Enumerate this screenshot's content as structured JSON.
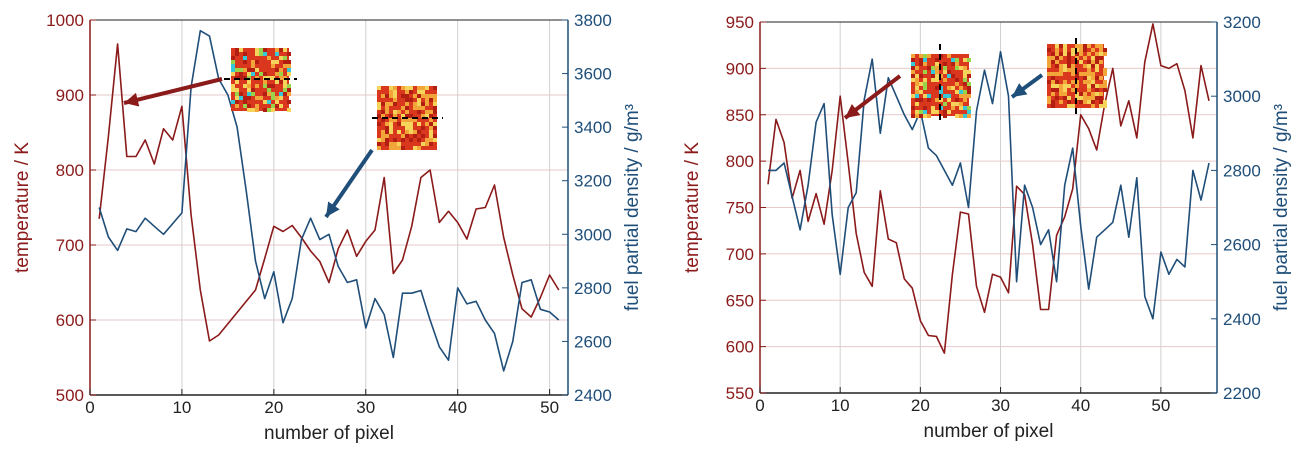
{
  "colors": {
    "temperature": "#8B1A1A",
    "fuel": "#1F4E79",
    "grid": "#d0d0d0",
    "axis": "#222222"
  },
  "chart_data": [
    {
      "type": "line",
      "xlabel": "number of pixel",
      "ylabel_left": "temperature / K",
      "ylabel_right": "fuel partial density / g/m³",
      "xlim": [
        0,
        52
      ],
      "ylim_left": [
        500,
        1000
      ],
      "ylim_right": [
        2400,
        3800
      ],
      "x_ticks": [
        0,
        10,
        20,
        30,
        40,
        50
      ],
      "y_ticks_left": [
        500,
        600,
        700,
        800,
        900,
        1000
      ],
      "y_ticks_right": [
        2400,
        2600,
        2800,
        3000,
        3200,
        3400,
        3600,
        3800
      ],
      "grid": true,
      "x": [
        1,
        2,
        3,
        4,
        5,
        6,
        7,
        8,
        9,
        10,
        11,
        12,
        13,
        14,
        15,
        16,
        17,
        18,
        19,
        20,
        21,
        22,
        23,
        24,
        25,
        26,
        27,
        28,
        29,
        30,
        31,
        32,
        33,
        34,
        35,
        36,
        37,
        38,
        39,
        40,
        41,
        42,
        43,
        44,
        45,
        46,
        47,
        48,
        49,
        50,
        51
      ],
      "series": [
        {
          "axis": "left",
          "values": [
            735,
            845,
            968,
            818,
            818,
            840,
            808,
            855,
            840,
            885,
            740,
            640,
            572,
            580,
            595,
            610,
            625,
            640,
            682,
            725,
            718,
            726,
            710,
            692,
            678,
            650,
            695,
            720,
            685,
            705,
            720,
            790,
            662,
            680,
            725,
            790,
            800,
            730,
            745,
            730,
            708,
            748,
            750,
            780,
            710,
            660,
            615,
            604,
            630,
            660,
            640
          ]
        },
        {
          "axis": "right",
          "values": [
            3100,
            2990,
            2940,
            3020,
            3010,
            3060,
            3030,
            3000,
            3040,
            3080,
            3550,
            3760,
            3740,
            3580,
            3520,
            3400,
            3160,
            2900,
            2760,
            2860,
            2670,
            2760,
            2980,
            3060,
            2980,
            3000,
            2880,
            2820,
            2830,
            2650,
            2760,
            2700,
            2540,
            2780,
            2780,
            2790,
            2680,
            2580,
            2530,
            2800,
            2740,
            2750,
            2680,
            2630,
            2490,
            2600,
            2820,
            2830,
            2720,
            2710,
            2680
          ]
        }
      ],
      "annotations": [
        {
          "type": "arrow",
          "color": "temperature"
        },
        {
          "type": "arrow",
          "color": "fuel"
        }
      ]
    },
    {
      "type": "line",
      "xlabel": "number of pixel",
      "ylabel_left": "temperature / K",
      "ylabel_right": "fuel partial density / g/m³",
      "xlim": [
        0,
        57
      ],
      "ylim_left": [
        550,
        950
      ],
      "ylim_right": [
        2200,
        3200
      ],
      "x_ticks": [
        0,
        10,
        20,
        30,
        40,
        50
      ],
      "y_ticks_left": [
        550,
        600,
        650,
        700,
        750,
        800,
        850,
        900,
        950
      ],
      "y_ticks_right": [
        2200,
        2400,
        2600,
        2800,
        3000,
        3200
      ],
      "grid": true,
      "x": [
        1,
        2,
        3,
        4,
        5,
        6,
        7,
        8,
        9,
        10,
        11,
        12,
        13,
        14,
        15,
        16,
        17,
        18,
        19,
        20,
        21,
        22,
        23,
        24,
        25,
        26,
        27,
        28,
        29,
        30,
        31,
        32,
        33,
        34,
        35,
        36,
        37,
        38,
        39,
        40,
        41,
        42,
        43,
        44,
        45,
        46,
        47,
        48,
        49,
        50,
        51,
        52,
        53,
        54,
        55,
        56
      ],
      "series": [
        {
          "axis": "left",
          "values": [
            775,
            845,
            820,
            760,
            790,
            735,
            765,
            732,
            790,
            870,
            798,
            722,
            680,
            665,
            768,
            716,
            712,
            673,
            663,
            628,
            612,
            611,
            593,
            678,
            745,
            743,
            665,
            637,
            678,
            675,
            658,
            773,
            764,
            710,
            640,
            640,
            720,
            740,
            770,
            850,
            835,
            812,
            862,
            900,
            838,
            865,
            825,
            907,
            948,
            903,
            900,
            905,
            876,
            825,
            903,
            865
          ]
        },
        {
          "axis": "right",
          "values": [
            2800,
            2800,
            2820,
            2730,
            2640,
            2760,
            2930,
            2980,
            2680,
            2520,
            2700,
            2740,
            2990,
            3100,
            2900,
            3050,
            3000,
            2950,
            2910,
            2960,
            2860,
            2840,
            2800,
            2760,
            2820,
            2700,
            2960,
            3070,
            2980,
            3120,
            3000,
            2500,
            2760,
            2700,
            2600,
            2640,
            2500,
            2760,
            2860,
            2650,
            2480,
            2620,
            2640,
            2660,
            2760,
            2620,
            2780,
            2460,
            2400,
            2580,
            2520,
            2560,
            2540,
            2800,
            2720,
            2820
          ]
        }
      ],
      "annotations": [
        {
          "type": "arrow",
          "color": "temperature"
        },
        {
          "type": "arrow",
          "color": "fuel"
        }
      ]
    }
  ]
}
